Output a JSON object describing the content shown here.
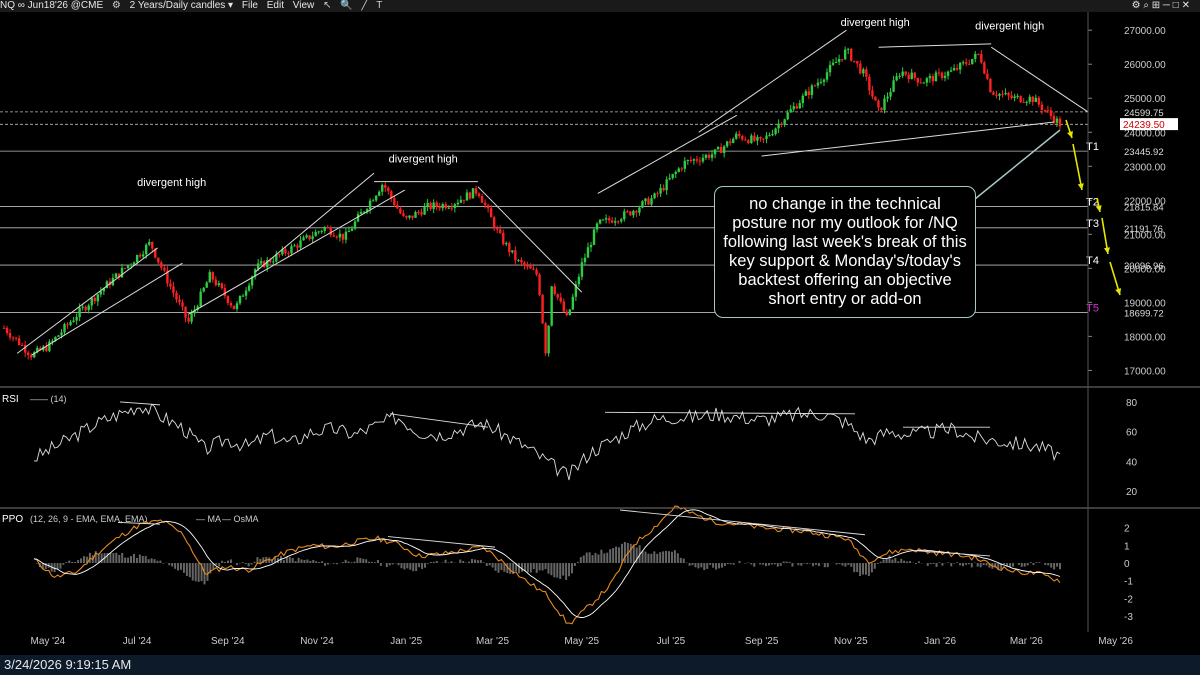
{
  "toolbar": {
    "symbol": "NQ ∞ Jun18'26 @CME",
    "timeframe": "2 Years/Daily candles ▾",
    "menu_file": "File",
    "menu_edit": "Edit",
    "menu_view": "View"
  },
  "status": {
    "timestamp": "3/24/2026 9:19:15 AM"
  },
  "callout_text": "no change in the technical posture nor my outlook for /NQ following last week's break of this key support & Monday's/today's backtest offering an objective short entry or add-on",
  "colors": {
    "up": "#2ecc40",
    "down": "#ff2020",
    "annotation": "#e6e600",
    "t5": "#cc33cc"
  },
  "chart_data": [
    {
      "type": "candlestick",
      "name": "price",
      "yaxis_ticks": [
        17000,
        18000,
        19000,
        20000,
        21000,
        22000,
        23000,
        24000,
        25000,
        26000,
        27000
      ],
      "ylim": [
        16600,
        27300
      ],
      "x_labels": [
        "May '24",
        "Jul '24",
        "Sep '24",
        "Nov '24",
        "Jan '25",
        "Mar '25",
        "May '25",
        "Jul '25",
        "Sep '25",
        "Nov '25",
        "Jan '26",
        "Mar '26",
        "May '26"
      ],
      "series": [
        {
          "date": "2024-04-01",
          "value": 18250
        },
        {
          "date": "2024-04-20",
          "value": 17450
        },
        {
          "date": "2024-05-01",
          "value": 17700
        },
        {
          "date": "2024-05-20",
          "value": 18600
        },
        {
          "date": "2024-06-10",
          "value": 19500
        },
        {
          "date": "2024-06-25",
          "value": 20100
        },
        {
          "date": "2024-07-10",
          "value": 20750
        },
        {
          "date": "2024-07-20",
          "value": 19800
        },
        {
          "date": "2024-08-05",
          "value": 18400
        },
        {
          "date": "2024-08-20",
          "value": 19800
        },
        {
          "date": "2024-09-06",
          "value": 18800
        },
        {
          "date": "2024-09-20",
          "value": 20000
        },
        {
          "date": "2024-10-15",
          "value": 20600
        },
        {
          "date": "2024-11-06",
          "value": 21200
        },
        {
          "date": "2024-11-20",
          "value": 20900
        },
        {
          "date": "2024-12-01",
          "value": 21600
        },
        {
          "date": "2024-12-16",
          "value": 22500
        },
        {
          "date": "2024-12-31",
          "value": 21400
        },
        {
          "date": "2025-01-15",
          "value": 21800
        },
        {
          "date": "2025-02-01",
          "value": 21900
        },
        {
          "date": "2025-02-19",
          "value": 22300
        },
        {
          "date": "2025-03-05",
          "value": 21000
        },
        {
          "date": "2025-03-18",
          "value": 20200
        },
        {
          "date": "2025-04-01",
          "value": 19800
        },
        {
          "date": "2025-04-07",
          "value": 17300
        },
        {
          "date": "2025-04-10",
          "value": 19600
        },
        {
          "date": "2025-04-21",
          "value": 18500
        },
        {
          "date": "2025-05-01",
          "value": 20100
        },
        {
          "date": "2025-05-12",
          "value": 21300
        },
        {
          "date": "2025-06-01",
          "value": 21600
        },
        {
          "date": "2025-06-20",
          "value": 22100
        },
        {
          "date": "2025-07-10",
          "value": 23100
        },
        {
          "date": "2025-08-01",
          "value": 23400
        },
        {
          "date": "2025-08-15",
          "value": 23900
        },
        {
          "date": "2025-09-01",
          "value": 23700
        },
        {
          "date": "2025-09-20",
          "value": 24600
        },
        {
          "date": "2025-10-10",
          "value": 25500
        },
        {
          "date": "2025-10-29",
          "value": 26400
        },
        {
          "date": "2025-11-10",
          "value": 25700
        },
        {
          "date": "2025-11-20",
          "value": 24600
        },
        {
          "date": "2025-12-05",
          "value": 25800
        },
        {
          "date": "2025-12-20",
          "value": 25500
        },
        {
          "date": "2026-01-10",
          "value": 25800
        },
        {
          "date": "2026-01-28",
          "value": 26300
        },
        {
          "date": "2026-02-05",
          "value": 25200
        },
        {
          "date": "2026-02-20",
          "value": 25000
        },
        {
          "date": "2026-03-05",
          "value": 25000
        },
        {
          "date": "2026-03-15",
          "value": 24600
        },
        {
          "date": "2026-03-24",
          "value": 24239.5
        }
      ],
      "horizontal_levels": [
        {
          "label": "24599.75",
          "value": 24599.75,
          "style": "dashed"
        },
        {
          "label": "24233.20",
          "value": 24233.2,
          "style": "dashed"
        },
        {
          "label": "23445.92",
          "value": 23445.92,
          "target": "T1"
        },
        {
          "label": "21815.84",
          "value": 21815.84,
          "target": "T2"
        },
        {
          "label": "21191.76",
          "value": 21191.76,
          "target": "T3"
        },
        {
          "label": "20096.96",
          "value": 20096.96,
          "target": "T4"
        },
        {
          "label": "18699.72",
          "value": 18699.72,
          "target": "T5"
        }
      ],
      "current_price": "24239.50",
      "annotations": [
        "divergent high",
        "divergent high",
        "divergent high",
        "divergent high"
      ]
    },
    {
      "type": "line",
      "name": "RSI",
      "label": "RSI",
      "params": "(14)",
      "yaxis_ticks": [
        20,
        40,
        60,
        80
      ],
      "ylim": [
        10,
        88
      ],
      "series_values": [
        42,
        50,
        58,
        66,
        72,
        78,
        70,
        62,
        48,
        55,
        50,
        58,
        52,
        60,
        62,
        58,
        64,
        70,
        60,
        58,
        62,
        66,
        58,
        50,
        40,
        30,
        46,
        54,
        62,
        68,
        70,
        70,
        72,
        70,
        68,
        70,
        72,
        72,
        66,
        54,
        60,
        58,
        60,
        62,
        56,
        54,
        52,
        50,
        44
      ]
    },
    {
      "type": "line",
      "name": "PPO",
      "label": "PPO",
      "params": "(12, 26, 9 - EMA, EMA, EMA)",
      "legend": [
        "MA",
        "OsMA"
      ],
      "yaxis_ticks": [
        -3,
        -2,
        -1,
        0,
        1,
        2
      ],
      "ylim": [
        -3.9,
        3.0
      ],
      "series_values": [
        0.2,
        -0.8,
        -0.5,
        0.6,
        1.5,
        2.2,
        2.4,
        1.6,
        -0.6,
        -0.2,
        -0.4,
        0.2,
        0.7,
        1.0,
        0.9,
        1.2,
        1.4,
        1.1,
        0.4,
        0.5,
        0.7,
        0.9,
        0.0,
        -1.0,
        -1.8,
        -3.5,
        -2.4,
        -1.2,
        1.0,
        2.0,
        3.2,
        2.7,
        2.3,
        2.2,
        2.0,
        1.9,
        1.8,
        1.6,
        1.4,
        0.1,
        0.6,
        0.8,
        0.6,
        0.5,
        0.3,
        -0.2,
        -0.5,
        -0.6,
        -1.0
      ]
    }
  ]
}
